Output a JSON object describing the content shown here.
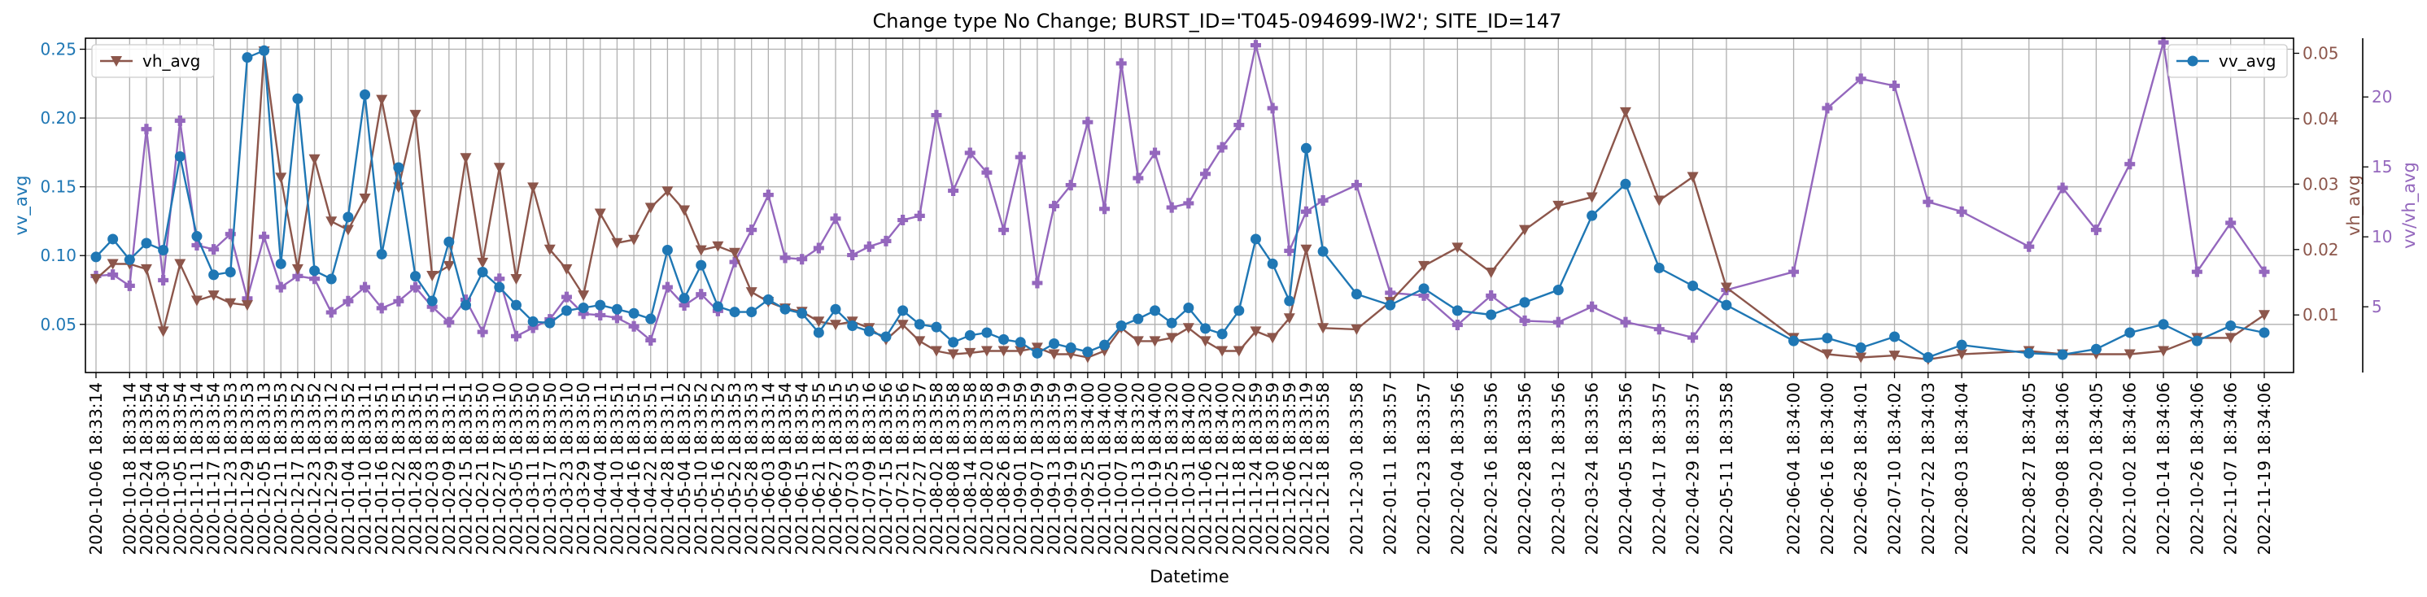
{
  "chart_data": {
    "type": "line",
    "title": "Change type No Change; BURST_ID='T045-094699-IW2'; SITE_ID=147",
    "xlabel": "Datetime",
    "x_ticks": [
      "2020-10-06 18:33:14",
      "2020-10-18 18:33:14",
      "2020-10-24 18:33:54",
      "2020-10-30 18:33:54",
      "2020-11-05 18:33:54",
      "2020-11-11 18:33:14",
      "2020-11-17 18:33:54",
      "2020-11-23 18:33:53",
      "2020-11-29 18:33:53",
      "2020-12-05 18:33:13",
      "2020-12-11 18:33:53",
      "2020-12-17 18:33:52",
      "2020-12-23 18:33:52",
      "2020-12-29 18:33:12",
      "2021-01-04 18:33:52",
      "2021-01-10 18:33:11",
      "2021-01-16 18:33:51",
      "2021-01-22 18:33:51",
      "2021-01-28 18:33:51",
      "2021-02-03 18:33:51",
      "2021-02-09 18:33:11",
      "2021-02-15 18:33:51",
      "2021-02-21 18:33:50",
      "2021-02-27 18:33:10",
      "2021-03-05 18:33:50",
      "2021-03-11 18:33:50",
      "2021-03-17 18:33:50",
      "2021-03-23 18:33:10",
      "2021-03-29 18:33:50",
      "2021-04-04 18:33:11",
      "2021-04-10 18:33:51",
      "2021-04-16 18:33:51",
      "2021-04-22 18:33:51",
      "2021-04-28 18:33:11",
      "2021-05-04 18:33:52",
      "2021-05-10 18:33:52",
      "2021-05-16 18:33:52",
      "2021-05-22 18:33:53",
      "2021-05-28 18:33:53",
      "2021-06-03 18:33:14",
      "2021-06-09 18:33:54",
      "2021-06-15 18:33:54",
      "2021-06-21 18:33:55",
      "2021-06-27 18:33:15",
      "2021-07-03 18:33:55",
      "2021-07-09 18:33:16",
      "2021-07-15 18:33:56",
      "2021-07-21 18:33:56",
      "2021-07-27 18:33:57",
      "2021-08-02 18:33:58",
      "2021-08-08 18:33:58",
      "2021-08-14 18:33:58",
      "2021-08-20 18:33:58",
      "2021-08-26 18:33:19",
      "2021-09-01 18:33:59",
      "2021-09-07 18:33:59",
      "2021-09-13 18:33:59",
      "2021-09-19 18:33:19",
      "2021-09-25 18:34:00",
      "2021-10-01 18:34:00",
      "2021-10-07 18:34:00",
      "2021-10-13 18:33:20",
      "2021-10-19 18:34:00",
      "2021-10-25 18:33:20",
      "2021-10-31 18:34:00",
      "2021-11-06 18:33:20",
      "2021-11-12 18:34:00",
      "2021-11-18 18:33:20",
      "2021-11-24 18:33:59",
      "2021-11-30 18:33:59",
      "2021-12-06 18:33:59",
      "2021-12-12 18:33:19",
      "2021-12-18 18:33:58",
      "2021-12-30 18:33:58",
      "2022-01-11 18:33:57",
      "2022-01-23 18:33:57",
      "2022-02-04 18:33:56",
      "2022-02-16 18:33:56",
      "2022-02-28 18:33:56",
      "2022-03-12 18:33:56",
      "2022-03-24 18:33:56",
      "2022-04-05 18:33:56",
      "2022-04-17 18:33:57",
      "2022-04-29 18:33:57",
      "2022-05-11 18:33:58",
      "2022-06-04 18:34:00",
      "2022-06-16 18:34:00",
      "2022-06-28 18:34:01",
      "2022-07-10 18:34:02",
      "2022-07-22 18:34:03",
      "2022-08-03 18:34:04",
      "2022-08-27 18:34:05",
      "2022-09-08 18:34:06",
      "2022-09-20 18:34:05",
      "2022-10-02 18:34:06",
      "2022-10-14 18:34:06",
      "2022-10-26 18:34:06",
      "2022-11-07 18:34:06",
      "2022-11-19 18:34:06"
    ],
    "left_axis": {
      "label": "vv_avg",
      "ylim": [
        0.015,
        0.258
      ],
      "ticks": [
        "0.05",
        "0.10",
        "0.15",
        "0.20",
        "0.25"
      ],
      "color": "#1f77b4"
    },
    "right_axis": {
      "label": "vh_avg",
      "ylim": [
        0.0012,
        0.0523
      ],
      "ticks": [
        "0.01",
        "0.02",
        "0.03",
        "0.04",
        "0.05"
      ],
      "color": "#8c564b"
    },
    "right_axis2": {
      "label": "vv/vh_avg",
      "ylim": [
        0.3,
        24.2
      ],
      "ticks": [
        "5",
        "10",
        "15",
        "20"
      ],
      "color": "#9467bd"
    },
    "series": [
      {
        "name": "vv_avg",
        "axis": "left",
        "color": "#1f77b4",
        "marker": "circle",
        "x": [
          "2020-10-06",
          "2020-10-12",
          "2020-10-18",
          "2020-10-24",
          "2020-10-30",
          "2020-11-05",
          "2020-11-11",
          "2020-11-17",
          "2020-11-23",
          "2020-11-29",
          "2020-12-05",
          "2020-12-11",
          "2020-12-17",
          "2020-12-23",
          "2020-12-29",
          "2021-01-04",
          "2021-01-10",
          "2021-01-16",
          "2021-01-22",
          "2021-01-28",
          "2021-02-03",
          "2021-02-09",
          "2021-02-15",
          "2021-02-21",
          "2021-02-27",
          "2021-03-05",
          "2021-03-11",
          "2021-03-17",
          "2021-03-23",
          "2021-03-29",
          "2021-04-04",
          "2021-04-10",
          "2021-04-16",
          "2021-04-22",
          "2021-04-28",
          "2021-05-04",
          "2021-05-10",
          "2021-05-16",
          "2021-05-22",
          "2021-05-28",
          "2021-06-03",
          "2021-06-09",
          "2021-06-15",
          "2021-06-21",
          "2021-06-27",
          "2021-07-03",
          "2021-07-09",
          "2021-07-15",
          "2021-07-21",
          "2021-07-27",
          "2021-08-02",
          "2021-08-08",
          "2021-08-14",
          "2021-08-20",
          "2021-08-26",
          "2021-09-01",
          "2021-09-07",
          "2021-09-13",
          "2021-09-19",
          "2021-09-25",
          "2021-10-01",
          "2021-10-07",
          "2021-10-13",
          "2021-10-19",
          "2021-10-25",
          "2021-10-31",
          "2021-11-06",
          "2021-11-12",
          "2021-11-18",
          "2021-11-24",
          "2021-11-30",
          "2021-12-06",
          "2021-12-12",
          "2021-12-18",
          "2021-12-30",
          "2022-01-11",
          "2022-01-23",
          "2022-02-04",
          "2022-02-16",
          "2022-02-28",
          "2022-03-12",
          "2022-03-24",
          "2022-04-05",
          "2022-04-17",
          "2022-04-29",
          "2022-05-11",
          "2022-06-04",
          "2022-06-16",
          "2022-06-28",
          "2022-07-10",
          "2022-07-22",
          "2022-08-03",
          "2022-08-27",
          "2022-09-08",
          "2022-09-20",
          "2022-10-02",
          "2022-10-14",
          "2022-10-26",
          "2022-11-07",
          "2022-11-19"
        ],
        "values": [
          0.099,
          0.112,
          0.097,
          0.109,
          0.104,
          0.172,
          0.114,
          0.086,
          0.088,
          0.244,
          0.249,
          0.094,
          0.214,
          0.089,
          0.083,
          0.128,
          0.217,
          0.101,
          0.164,
          0.085,
          0.067,
          0.11,
          0.064,
          0.088,
          0.077,
          0.064,
          0.052,
          0.051,
          0.06,
          0.062,
          0.064,
          0.061,
          0.058,
          0.054,
          0.104,
          0.069,
          0.093,
          0.063,
          0.059,
          0.059,
          0.068,
          0.061,
          0.058,
          0.044,
          0.061,
          0.049,
          0.045,
          0.041,
          0.06,
          0.05,
          0.048,
          0.037,
          0.042,
          0.044,
          0.039,
          0.037,
          0.029,
          0.036,
          0.033,
          0.03,
          0.035,
          0.049,
          0.054,
          0.06,
          0.051,
          0.062,
          0.047,
          0.043,
          0.06,
          0.112,
          0.094,
          0.067,
          0.178,
          0.103,
          0.072,
          0.064,
          0.076,
          0.06,
          0.057,
          0.066,
          0.075,
          0.129,
          0.152,
          0.091,
          0.078,
          0.064,
          0.038,
          0.04,
          0.033,
          0.041,
          0.026,
          0.035,
          0.029,
          0.028,
          0.032,
          0.044,
          0.05,
          0.038,
          0.049,
          0.044
        ]
      },
      {
        "name": "vh_avg",
        "axis": "right",
        "color": "#8c564b",
        "marker": "triangle-down",
        "values": [
          0.0155,
          0.0178,
          0.0178,
          0.017,
          0.0075,
          0.0178,
          0.0122,
          0.013,
          0.0118,
          0.0115,
          0.0503,
          0.031,
          0.017,
          0.0338,
          0.0243,
          0.023,
          0.0278,
          0.0429,
          0.0295,
          0.0406,
          0.016,
          0.0175,
          0.034,
          0.018,
          0.0325,
          0.0155,
          0.0295,
          0.02,
          0.017,
          0.013,
          0.0255,
          0.021,
          0.0215,
          0.0264,
          0.0289,
          0.026,
          0.0199,
          0.0205,
          0.0195,
          0.0135,
          0.012,
          0.011,
          0.0105,
          0.009,
          0.0085,
          0.009,
          0.008,
          0.0062,
          0.0085,
          0.006,
          0.0045,
          0.004,
          0.0042,
          0.0045,
          0.0045,
          0.0045,
          0.005,
          0.004,
          0.004,
          0.0035,
          0.0045,
          0.008,
          0.006,
          0.006,
          0.0065,
          0.008,
          0.006,
          0.0045,
          0.0045,
          0.0075,
          0.0065,
          0.0095,
          0.02,
          0.008,
          0.0078,
          0.012,
          0.0175,
          0.0203,
          0.0165,
          0.023,
          0.0267,
          0.028,
          0.041,
          0.0275,
          0.0311,
          0.0142,
          0.0065,
          0.004,
          0.0035,
          0.0038,
          0.0032,
          0.004,
          0.0045,
          0.004,
          0.004,
          0.004,
          0.0045,
          0.0065,
          0.0065,
          0.01
        ]
      },
      {
        "name": "vv/vh_avg",
        "axis": "right2",
        "color": "#9467bd",
        "marker": "plus",
        "values": [
          7.2,
          7.3,
          6.5,
          17.7,
          6.9,
          18.3,
          9.4,
          9.1,
          10.2,
          5.6,
          10.0,
          6.4,
          7.2,
          7.0,
          4.6,
          5.4,
          6.4,
          4.9,
          5.4,
          6.4,
          5.0,
          3.9,
          5.5,
          3.2,
          7.0,
          2.9,
          3.5,
          4.1,
          5.7,
          4.5,
          4.4,
          4.2,
          3.6,
          2.6,
          6.4,
          5.1,
          5.9,
          4.7,
          8.2,
          10.5,
          13.0,
          8.5,
          8.4,
          9.2,
          11.3,
          8.7,
          9.3,
          9.7,
          11.2,
          11.5,
          18.7,
          13.3,
          16.0,
          14.6,
          10.5,
          15.7,
          6.7,
          12.2,
          13.7,
          18.2,
          12.0,
          22.4,
          14.2,
          16.0,
          12.1,
          12.4,
          14.5,
          16.4,
          18.0,
          23.7,
          19.2,
          9.0,
          11.8,
          12.6,
          13.7,
          6.0,
          5.8,
          3.7,
          5.8,
          4.0,
          3.9,
          5.0,
          3.9,
          3.4,
          2.8,
          6.2,
          7.5,
          19.2,
          21.3,
          20.8,
          12.5,
          11.8,
          9.3,
          13.5,
          10.5,
          15.2,
          23.9,
          7.5,
          11.0,
          7.5
        ]
      }
    ],
    "legend": [
      {
        "label": "vh_avg",
        "placement": "top-left"
      },
      {
        "label": "vv_avg",
        "placement": "top-right"
      }
    ],
    "grid": true
  }
}
